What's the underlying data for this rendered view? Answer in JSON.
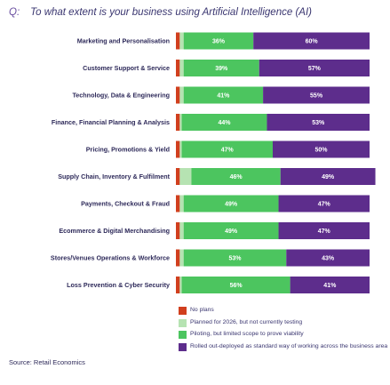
{
  "question": {
    "prefix": "Q:",
    "text": "To what extent is your business using Artificial Intelligence (AI)"
  },
  "source": "Source: Retail Economics",
  "colors": {
    "no_plans": "#d13f1e",
    "planned": "#b6e3b2",
    "piloting": "#4cc55f",
    "rolled_out": "#5d2d8c",
    "label": "#2e2a5a"
  },
  "chart_data": {
    "type": "bar",
    "orientation": "horizontal",
    "stacked": true,
    "unit": "%",
    "xlim": [
      0,
      100
    ],
    "grid": false,
    "legend_position": "bottom-right",
    "categories": [
      "Marketing and Personalisation",
      "Customer Support & Service",
      "Technology, Data & Engineering",
      "Finance, Financial Planning & Analysis",
      "Pricing, Promotions & Yield",
      "Supply Chain, Inventory & Fulfilment",
      "Payments, Checkout & Fraud",
      "Ecommerce & Digital Merchandising",
      "Stores/Venues Operations & Workforce",
      "Loss Prevention & Cyber Security"
    ],
    "series": [
      {
        "name": "No plans",
        "color": "#d13f1e",
        "values": [
          2,
          2,
          2,
          2,
          2,
          2,
          2,
          2,
          2,
          2
        ],
        "labels": [
          "",
          "",
          "",
          "",
          "",
          "",
          "",
          "",
          "",
          ""
        ]
      },
      {
        "name": "Planned for 2026, but not currently testing",
        "color": "#b6e3b2",
        "values": [
          2,
          2,
          2,
          1,
          1,
          6,
          2,
          2,
          2,
          1
        ],
        "labels": [
          "",
          "",
          "",
          "",
          "",
          "",
          "",
          "",
          "",
          ""
        ]
      },
      {
        "name": "Piloting, but limited scope to prove viability",
        "color": "#4cc55f",
        "values": [
          36,
          39,
          41,
          44,
          47,
          46,
          49,
          49,
          53,
          56
        ],
        "labels": [
          "36%",
          "39%",
          "41%",
          "44%",
          "47%",
          "46%",
          "49%",
          "49%",
          "53%",
          "56%"
        ]
      },
      {
        "name": "Rolled out-deployed as standard way of working across the business area",
        "color": "#5d2d8c",
        "values": [
          60,
          57,
          55,
          53,
          50,
          49,
          47,
          47,
          43,
          41
        ],
        "labels": [
          "60%",
          "57%",
          "55%",
          "53%",
          "50%",
          "49%",
          "47%",
          "47%",
          "43%",
          "41%"
        ]
      }
    ]
  }
}
